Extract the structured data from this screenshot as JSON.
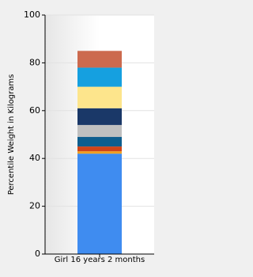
{
  "chart_data": {
    "type": "stacked-bar",
    "y_label": "Percentile Weight in Kilograms",
    "categories": [
      "Girl 16 years 2 months"
    ],
    "series": [
      {
        "color": "#3f8cf0",
        "values": [
          42
        ]
      },
      {
        "color": "#f0a020",
        "values": [
          1
        ]
      },
      {
        "color": "#d04418",
        "values": [
          2
        ]
      },
      {
        "color": "#0e5e8e",
        "values": [
          4
        ]
      },
      {
        "color": "#c0c0c0",
        "values": [
          5
        ]
      },
      {
        "color": "#1a3868",
        "values": [
          7
        ]
      },
      {
        "color": "#fde58c",
        "values": [
          9
        ]
      },
      {
        "color": "#15a0e0",
        "values": [
          8
        ]
      },
      {
        "color": "#cc6a4e",
        "values": [
          7
        ]
      }
    ],
    "ylim": [
      0,
      100
    ],
    "yticks": [
      0,
      20,
      40,
      60,
      80,
      100
    ],
    "grid": true
  }
}
